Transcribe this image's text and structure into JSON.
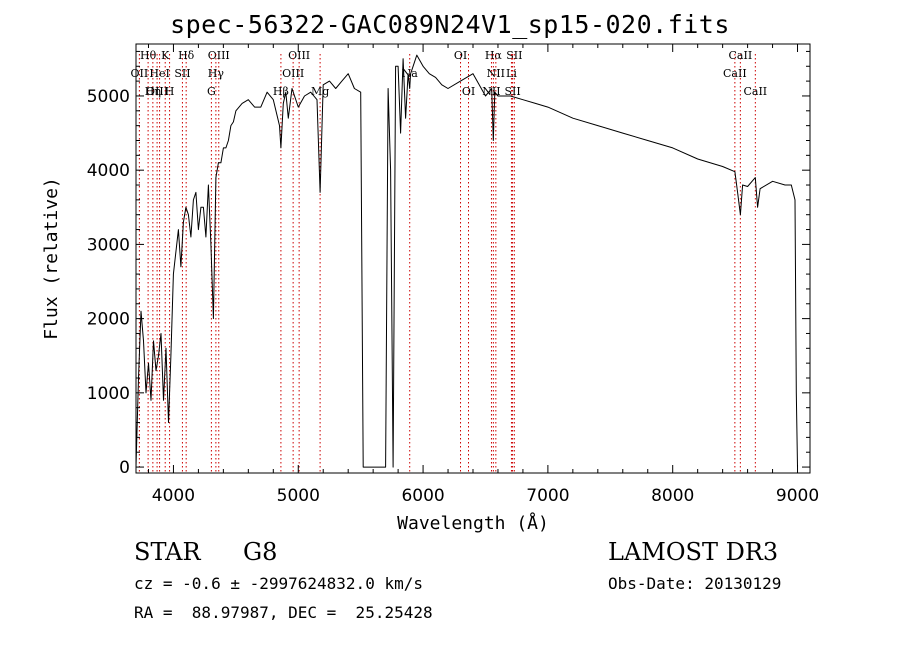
{
  "chart_data": {
    "type": "line",
    "title": "spec-56322-GAC089N24V1_sp15-020.fits",
    "xlabel": "Wavelength (Å)",
    "ylabel": "Flux (relative)",
    "xlim": [
      3700,
      9100
    ],
    "ylim": [
      -80,
      5700
    ],
    "xticks": [
      4000,
      5000,
      6000,
      7000,
      8000,
      9000
    ],
    "yticks": [
      0,
      1000,
      2000,
      3000,
      4000,
      5000
    ],
    "x_tick_labels": [
      "4000",
      "5000",
      "6000",
      "7000",
      "8000",
      "9000"
    ],
    "y_tick_labels": [
      "0",
      "1000",
      "2000",
      "3000",
      "4000",
      "5000"
    ],
    "line_color": "#000000",
    "marker_color": "#cc0000",
    "series": [
      {
        "name": "flux",
        "x": [
          3700,
          3720,
          3740,
          3760,
          3780,
          3800,
          3820,
          3840,
          3860,
          3880,
          3900,
          3920,
          3940,
          3960,
          3980,
          4000,
          4020,
          4040,
          4060,
          4080,
          4100,
          4120,
          4140,
          4160,
          4180,
          4200,
          4220,
          4240,
          4260,
          4280,
          4300,
          4320,
          4340,
          4360,
          4380,
          4400,
          4420,
          4440,
          4460,
          4480,
          4500,
          4550,
          4600,
          4650,
          4700,
          4750,
          4800,
          4850,
          4861,
          4880,
          4900,
          4920,
          4950,
          5000,
          5050,
          5100,
          5150,
          5175,
          5200,
          5250,
          5300,
          5350,
          5400,
          5450,
          5500,
          5520,
          5540,
          5560,
          5600,
          5650,
          5700,
          5720,
          5740,
          5760,
          5780,
          5800,
          5820,
          5840,
          5860,
          5880,
          5893,
          5900,
          5920,
          5950,
          6000,
          6050,
          6100,
          6150,
          6200,
          6300,
          6400,
          6500,
          6550,
          6563,
          6575,
          6600,
          6700,
          6800,
          6900,
          7000,
          7200,
          7400,
          7600,
          7800,
          8000,
          8200,
          8400,
          8498,
          8520,
          8542,
          8560,
          8600,
          8662,
          8680,
          8700,
          8800,
          8900,
          8950,
          8980,
          8990,
          9000
        ],
        "y": [
          0,
          1200,
          2100,
          1700,
          1000,
          1400,
          900,
          1700,
          1300,
          1500,
          1800,
          900,
          1600,
          600,
          1500,
          2600,
          2900,
          3200,
          2700,
          3300,
          3500,
          3400,
          3100,
          3600,
          3700,
          3200,
          3500,
          3500,
          3100,
          3800,
          3000,
          2000,
          3900,
          4100,
          4100,
          4300,
          4300,
          4400,
          4600,
          4650,
          4800,
          4900,
          4950,
          4850,
          4850,
          5050,
          4950,
          4600,
          4300,
          4900,
          5050,
          4700,
          5100,
          4850,
          5000,
          5050,
          4950,
          3700,
          5150,
          5200,
          5100,
          5200,
          5300,
          5100,
          5050,
          0,
          0,
          0,
          0,
          0,
          0,
          5100,
          4000,
          0,
          5400,
          5400,
          4500,
          5500,
          4700,
          5300,
          5100,
          5300,
          5400,
          5550,
          5400,
          5300,
          5250,
          5150,
          5100,
          5200,
          5300,
          5000,
          5100,
          4400,
          5050,
          5000,
          5000,
          4950,
          4900,
          4850,
          4700,
          4600,
          4500,
          4400,
          4300,
          4150,
          4050,
          3980,
          3700,
          3400,
          3800,
          3780,
          3900,
          3500,
          3750,
          3850,
          3800,
          3800,
          3600,
          1000,
          0
        ]
      }
    ],
    "line_markers": [
      {
        "label": "Hθ",
        "x": 3797,
        "row": 0
      },
      {
        "label": "OII",
        "x": 3727,
        "row": 1
      },
      {
        "label": "OIII",
        "x": 3869,
        "row": 2
      },
      {
        "label": "K",
        "x": 3934,
        "row": 0
      },
      {
        "label": "HeI",
        "x": 3889,
        "row": 1
      },
      {
        "label": "Hη",
        "x": 3835,
        "row": 2
      },
      {
        "label": "SII",
        "x": 4072,
        "row": 1
      },
      {
        "label": "H",
        "x": 3969,
        "row": 2
      },
      {
        "label": "Hδ",
        "x": 4102,
        "row": 0
      },
      {
        "label": "OIII",
        "x": 4363,
        "row": 0
      },
      {
        "label": "Hγ",
        "x": 4340,
        "row": 1
      },
      {
        "label": "G",
        "x": 4304,
        "row": 2
      },
      {
        "label": "OIII",
        "x": 5007,
        "row": 0
      },
      {
        "label": "OIII",
        "x": 4959,
        "row": 1
      },
      {
        "label": "Hβ",
        "x": 4861,
        "row": 2
      },
      {
        "label": "Mg",
        "x": 5175,
        "row": 2
      },
      {
        "label": "Na",
        "x": 5893,
        "row": 1
      },
      {
        "label": "OI",
        "x": 6300,
        "row": 0
      },
      {
        "label": "OI",
        "x": 6364,
        "row": 2
      },
      {
        "label": "Hα",
        "x": 6563,
        "row": 0
      },
      {
        "label": "SII",
        "x": 6731,
        "row": 0
      },
      {
        "label": "NII",
        "x": 6583,
        "row": 1
      },
      {
        "label": "Li",
        "x": 6708,
        "row": 1
      },
      {
        "label": "NII",
        "x": 6548,
        "row": 2
      },
      {
        "label": "SII",
        "x": 6717,
        "row": 2
      },
      {
        "label": "CaII",
        "x": 8542,
        "row": 0
      },
      {
        "label": "CaII",
        "x": 8498,
        "row": 1
      },
      {
        "label": "CaII",
        "x": 8662,
        "row": 2
      }
    ]
  },
  "info": {
    "object_class": "STAR",
    "subclass": "G8",
    "survey": "LAMOST DR3",
    "cz_line": "cz = -0.6 ± -2997624832.0 km/s",
    "obs_date": "Obs-Date: 20130129",
    "radec_line": "RA =  88.97987, DEC =  25.25428"
  }
}
